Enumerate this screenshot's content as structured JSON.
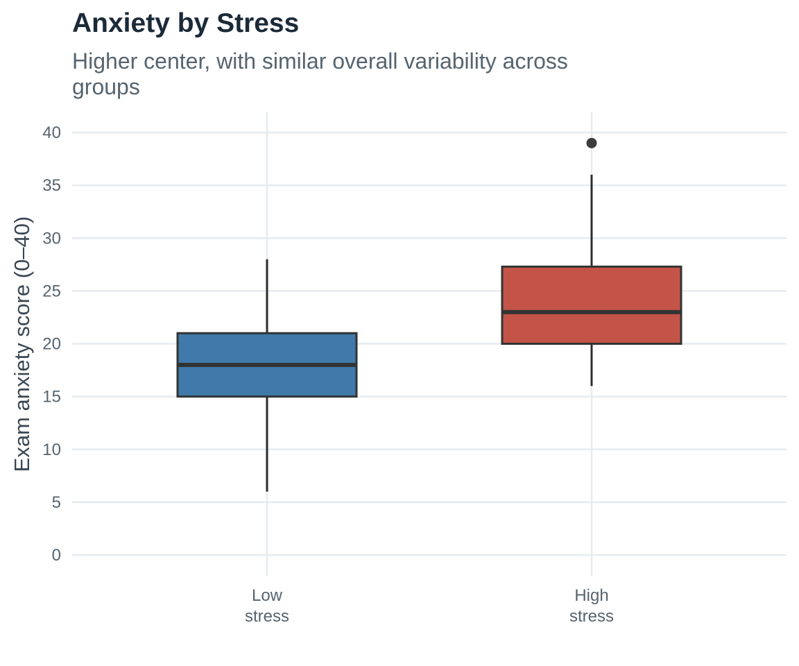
{
  "chart_data": {
    "type": "box",
    "title": "Anxiety by Stress",
    "subtitle": "Higher center, with similar overall variability across groups",
    "xlabel": "",
    "ylabel": "Exam anxiety score (0–40)",
    "ylim": [
      0,
      40
    ],
    "yticks": [
      0,
      5,
      10,
      15,
      20,
      25,
      30,
      35,
      40
    ],
    "grid": true,
    "legend": "none",
    "categories": [
      "Low\nstress",
      "High\nstress"
    ],
    "boxes": [
      {
        "category": "Low\nstress",
        "whisker_low": 6,
        "q1": 15,
        "median": 18,
        "q3": 21,
        "whisker_high": 28,
        "outliers": [],
        "color": "#2f6fa3"
      },
      {
        "category": "High\nstress",
        "whisker_low": 16,
        "q1": 20,
        "median": 23,
        "q3": 27.3,
        "whisker_high": 36,
        "outliers": [
          39
        ],
        "color": "#bf4538"
      }
    ]
  }
}
